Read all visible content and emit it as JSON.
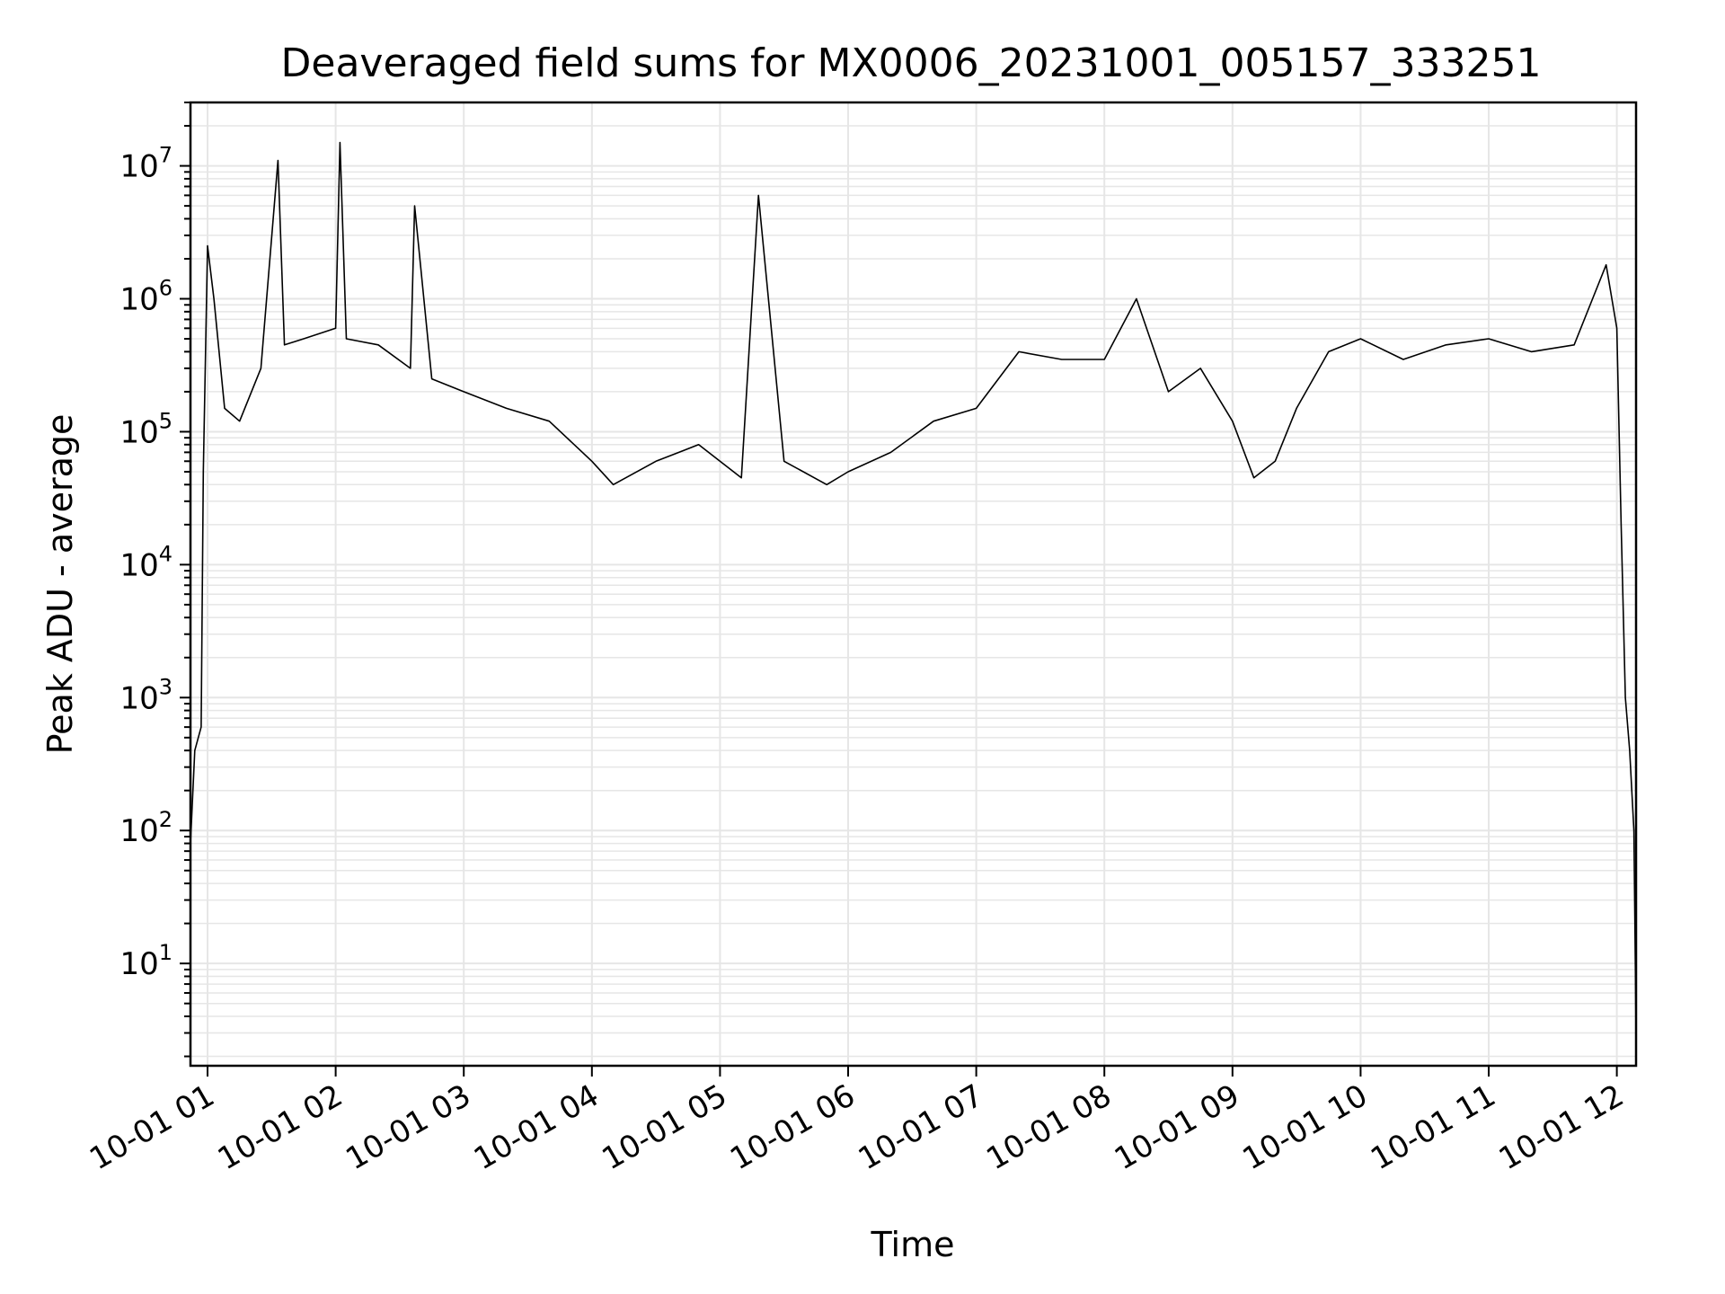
{
  "chart_data": {
    "type": "line",
    "title": "Deaveraged field sums for MX0006_20231001_005157_333251",
    "xlabel": "Time",
    "ylabel": "Peak ADU - average",
    "yscale": "log",
    "grid": true,
    "x_tick_labels": [
      "10-01 01",
      "10-01 02",
      "10-01 03",
      "10-01 04",
      "10-01 05",
      "10-01 06",
      "10-01 07",
      "10-01 08",
      "10-01 09",
      "10-01 10",
      "10-01 11",
      "10-01 12"
    ],
    "y_tick_base": "10",
    "y_tick_exponents": [
      "1",
      "2",
      "3",
      "4",
      "5",
      "6",
      "7"
    ],
    "xlim": [
      "2023-10-01 00:52",
      "2023-10-01 12:09"
    ],
    "ylim": [
      1.7,
      30000000
    ],
    "series": [
      {
        "color": "#000000",
        "x": [
          "2023-10-01 00:52",
          "2023-10-01 00:54",
          "2023-10-01 00:57",
          "2023-10-01 00:58",
          "2023-10-01 01:00",
          "2023-10-01 01:03",
          "2023-10-01 01:08",
          "2023-10-01 01:15",
          "2023-10-01 01:25",
          "2023-10-01 01:33",
          "2023-10-01 01:36",
          "2023-10-01 01:45",
          "2023-10-01 02:00",
          "2023-10-01 02:02",
          "2023-10-01 02:05",
          "2023-10-01 02:20",
          "2023-10-01 02:35",
          "2023-10-01 02:37",
          "2023-10-01 02:45",
          "2023-10-01 03:00",
          "2023-10-01 03:20",
          "2023-10-01 03:40",
          "2023-10-01 04:00",
          "2023-10-01 04:10",
          "2023-10-01 04:30",
          "2023-10-01 04:50",
          "2023-10-01 05:10",
          "2023-10-01 05:18",
          "2023-10-01 05:30",
          "2023-10-01 05:50",
          "2023-10-01 06:00",
          "2023-10-01 06:20",
          "2023-10-01 06:40",
          "2023-10-01 07:00",
          "2023-10-01 07:20",
          "2023-10-01 07:40",
          "2023-10-01 08:00",
          "2023-10-01 08:15",
          "2023-10-01 08:30",
          "2023-10-01 08:45",
          "2023-10-01 09:00",
          "2023-10-01 09:10",
          "2023-10-01 09:20",
          "2023-10-01 09:30",
          "2023-10-01 09:45",
          "2023-10-01 10:00",
          "2023-10-01 10:20",
          "2023-10-01 10:40",
          "2023-10-01 11:00",
          "2023-10-01 11:20",
          "2023-10-01 11:40",
          "2023-10-01 11:55",
          "2023-10-01 12:00",
          "2023-10-01 12:02",
          "2023-10-01 12:04",
          "2023-10-01 12:06",
          "2023-10-01 12:08",
          "2023-10-01 12:09"
        ],
        "y": [
          80,
          400,
          600,
          50000,
          2500000,
          1000000,
          150000,
          120000,
          300000,
          11000000,
          450000,
          500000,
          600000,
          15000000,
          500000,
          450000,
          300000,
          5000000,
          250000,
          200000,
          150000,
          120000,
          60000,
          40000,
          60000,
          80000,
          45000,
          6000000,
          60000,
          40000,
          50000,
          70000,
          120000,
          150000,
          400000,
          350000,
          350000,
          1000000,
          200000,
          300000,
          120000,
          45000,
          60000,
          150000,
          400000,
          500000,
          350000,
          450000,
          500000,
          400000,
          450000,
          1800000,
          600000,
          20000,
          1000,
          400,
          100,
          3
        ]
      }
    ]
  }
}
